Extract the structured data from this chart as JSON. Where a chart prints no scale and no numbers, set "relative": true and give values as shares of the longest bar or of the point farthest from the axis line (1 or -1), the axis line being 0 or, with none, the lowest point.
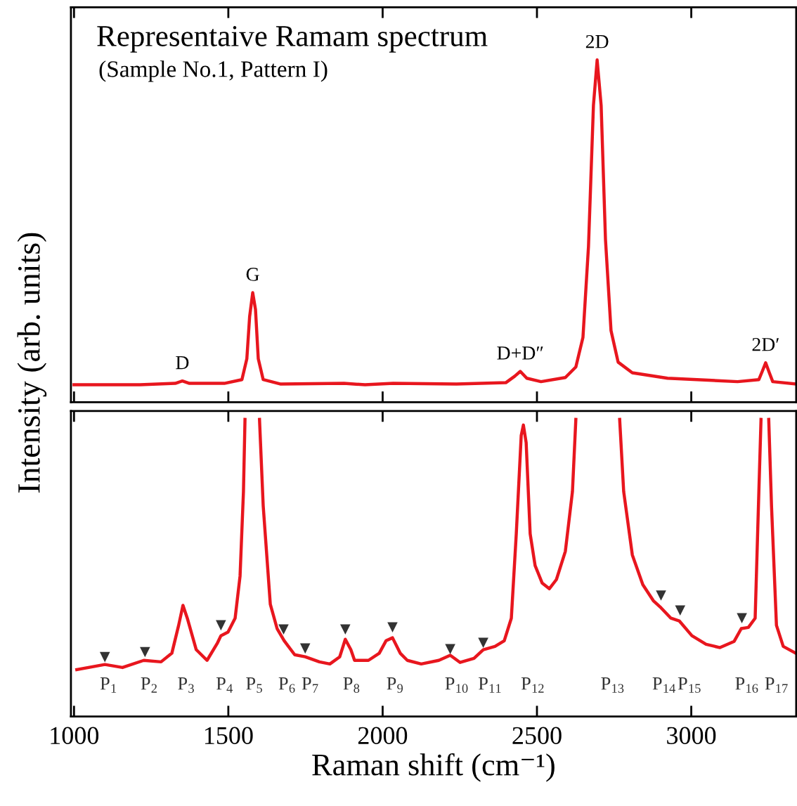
{
  "chart_data": [
    {
      "type": "line",
      "title": "Representaive Ramam spectrum",
      "subtitle": "(Sample No.1, Pattern I)",
      "ylabel": "Intensity (arb. units)",
      "relative": true,
      "xlim": [
        990,
        3340
      ],
      "xticks": [
        1000,
        1500,
        2000,
        2500,
        3000
      ],
      "tick_labels": false,
      "grid": false,
      "legend": false,
      "line_style": "solid",
      "marker": "none",
      "series": [
        {
          "color": "#e8161e",
          "x": [
            1000,
            1214,
            1328,
            1351,
            1374,
            1487,
            1544,
            1560,
            1569,
            1579,
            1588,
            1597,
            1613,
            1670,
            1875,
            1943,
            2034,
            2239,
            2399,
            2428,
            2446,
            2467,
            2513,
            2592,
            2626,
            2649,
            2667,
            2683,
            2695,
            2708,
            2722,
            2740,
            2763,
            2809,
            2923,
            3150,
            3219,
            3230,
            3241,
            3253,
            3264,
            3339
          ],
          "values": [
            0.051,
            0.051,
            0.055,
            0.062,
            0.055,
            0.055,
            0.066,
            0.127,
            0.25,
            0.32,
            0.271,
            0.127,
            0.066,
            0.053,
            0.055,
            0.051,
            0.055,
            0.053,
            0.057,
            0.076,
            0.09,
            0.07,
            0.06,
            0.072,
            0.103,
            0.189,
            0.456,
            0.867,
            1.0,
            0.867,
            0.476,
            0.209,
            0.117,
            0.086,
            0.07,
            0.06,
            0.066,
            0.09,
            0.115,
            0.086,
            0.06,
            0.053
          ]
        }
      ],
      "annotations": [
        {
          "text": "D",
          "x": 1351,
          "y": 0.062
        },
        {
          "text": "G",
          "x": 1579,
          "y": 0.32
        },
        {
          "text": "D+D″",
          "x": 2446,
          "y": 0.09
        },
        {
          "text": "2D",
          "x": 2695,
          "y": 1.0
        },
        {
          "text": "2D′",
          "x": 3241,
          "y": 0.115
        }
      ]
    },
    {
      "type": "line",
      "xlabel": "Raman shift (cm⁻¹)",
      "relative": true,
      "xlim": [
        990,
        3340
      ],
      "xticks": [
        1000,
        1500,
        2000,
        2500,
        3000
      ],
      "tick_labels": "x",
      "grid": false,
      "legend": false,
      "line_style": "solid",
      "marker": "none",
      "series": [
        {
          "color": "#e8161e",
          "x": [
            1009,
            1100,
            1157,
            1226,
            1282,
            1317,
            1339,
            1353,
            1367,
            1396,
            1431,
            1465,
            1476,
            1499,
            1522,
            1538,
            1549,
            1554,
            1577,
            1601,
            1613,
            1636,
            1658,
            1681,
            1715,
            1749,
            1795,
            1829,
            1861,
            1879,
            1897,
            1909,
            1954,
            1989,
            2011,
            2032,
            2057,
            2080,
            2125,
            2182,
            2219,
            2251,
            2296,
            2326,
            2364,
            2394,
            2417,
            2433,
            2449,
            2456,
            2465,
            2478,
            2494,
            2517,
            2540,
            2563,
            2592,
            2615,
            2626,
            2697,
            2768,
            2781,
            2809,
            2843,
            2877,
            2902,
            2934,
            2961,
            3002,
            3048,
            3093,
            3139,
            3162,
            3185,
            3207,
            3219,
            3226,
            3238,
            3251,
            3260,
            3276,
            3298,
            3339
          ],
          "values": [
            0.158,
            0.175,
            0.165,
            0.189,
            0.184,
            0.213,
            0.307,
            0.374,
            0.331,
            0.225,
            0.189,
            0.248,
            0.272,
            0.284,
            0.331,
            0.473,
            0.757,
            1.0,
            null,
            1.0,
            0.709,
            0.378,
            0.296,
            0.255,
            0.208,
            0.201,
            0.184,
            0.177,
            0.201,
            0.26,
            0.225,
            0.189,
            0.189,
            0.213,
            0.255,
            0.265,
            0.213,
            0.189,
            0.177,
            0.189,
            0.206,
            0.182,
            0.196,
            0.225,
            0.236,
            0.255,
            0.331,
            0.615,
            0.946,
            0.981,
            0.922,
            0.615,
            0.508,
            0.449,
            0.43,
            0.461,
            0.556,
            0.757,
            1.0,
            null,
            1.0,
            0.757,
            0.544,
            0.444,
            0.39,
            0.366,
            0.331,
            0.322,
            0.272,
            0.243,
            0.232,
            0.253,
            0.296,
            0.3,
            0.331,
            0.757,
            1.0,
            null,
            1.0,
            0.709,
            0.307,
            0.236,
            0.213
          ]
        },
        {
          "type": "scatter",
          "marker": "triangle",
          "color": "#333333",
          "x": [
            1100,
            1230,
            1476,
            1679,
            1749,
            1879,
            2032,
            2219,
            2326,
            2902,
            2964,
            3164
          ],
          "values": [
            0.2,
            0.217,
            0.307,
            0.293,
            0.229,
            0.293,
            0.3,
            0.227,
            0.248,
            0.407,
            0.357,
            0.331
          ]
        }
      ],
      "annotations": [
        "P$_{1}$",
        "P$_{2}$",
        "P$_{3}$",
        "P$_{4}$",
        "P$_{5}$",
        "P$_{6}$",
        "P$_{7}$",
        "P$_{8}$",
        "P$_{9}$",
        "P$_{10}$",
        "P$_{11}$",
        "P$_{12}$",
        "P$_{13}$",
        "P$_{14}$",
        "P$_{15}$",
        "P$_{16}$",
        "P$_{17}$"
      ]
    }
  ]
}
